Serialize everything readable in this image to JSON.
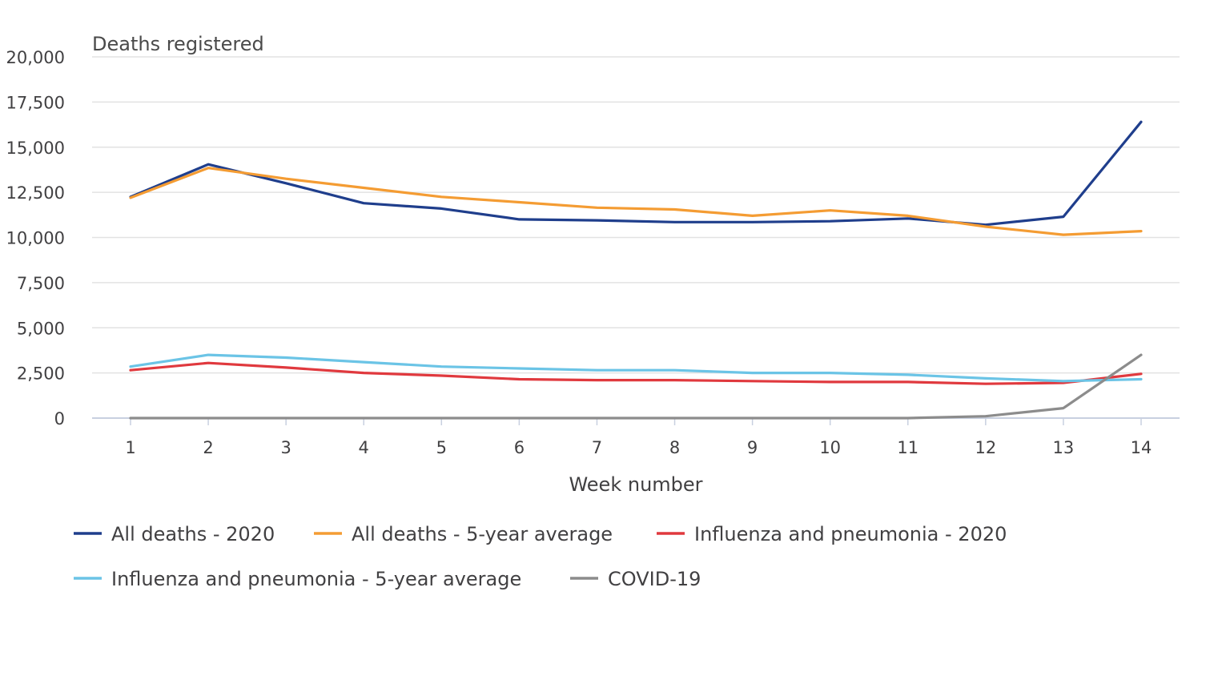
{
  "chart_data": {
    "type": "line",
    "title": "",
    "ylabel": "Deaths registered",
    "xlabel": "Week number",
    "x": [
      1,
      2,
      3,
      4,
      5,
      6,
      7,
      8,
      9,
      10,
      11,
      12,
      13,
      14
    ],
    "ylim": [
      0,
      20000
    ],
    "yticks": [
      0,
      2500,
      5000,
      7500,
      10000,
      12500,
      15000,
      17500,
      20000
    ],
    "ytick_labels": [
      "0",
      "2,500",
      "5,000",
      "7,500",
      "10,000",
      "12,500",
      "15,000",
      "17,500",
      "20,000"
    ],
    "grid": true,
    "legend_position": "bottom",
    "series": [
      {
        "name": "All deaths - 2020",
        "color": "#1f3e8c",
        "values": [
          12250,
          14050,
          13000,
          11900,
          11600,
          11000,
          10950,
          10850,
          10850,
          10900,
          11050,
          10700,
          11150,
          16400
        ]
      },
      {
        "name": "All deaths - 5-year average",
        "color": "#f49c33",
        "values": [
          12200,
          13850,
          13250,
          12750,
          12250,
          11950,
          11650,
          11550,
          11200,
          11500,
          11200,
          10600,
          10150,
          10350
        ]
      },
      {
        "name": "Influenza and pneumonia - 2020",
        "color": "#e0393e",
        "values": [
          2650,
          3050,
          2800,
          2500,
          2350,
          2150,
          2100,
          2100,
          2050,
          2000,
          2000,
          1900,
          1950,
          2450
        ]
      },
      {
        "name": "Influenza and pneumonia - 5-year average",
        "color": "#6bc4e6",
        "values": [
          2850,
          3500,
          3350,
          3100,
          2850,
          2750,
          2650,
          2650,
          2500,
          2500,
          2400,
          2200,
          2050,
          2150
        ]
      },
      {
        "name": "COVID-19",
        "color": "#8c8c8c",
        "values": [
          0,
          0,
          0,
          0,
          0,
          0,
          0,
          0,
          0,
          0,
          0,
          100,
          550,
          3500
        ]
      }
    ]
  }
}
